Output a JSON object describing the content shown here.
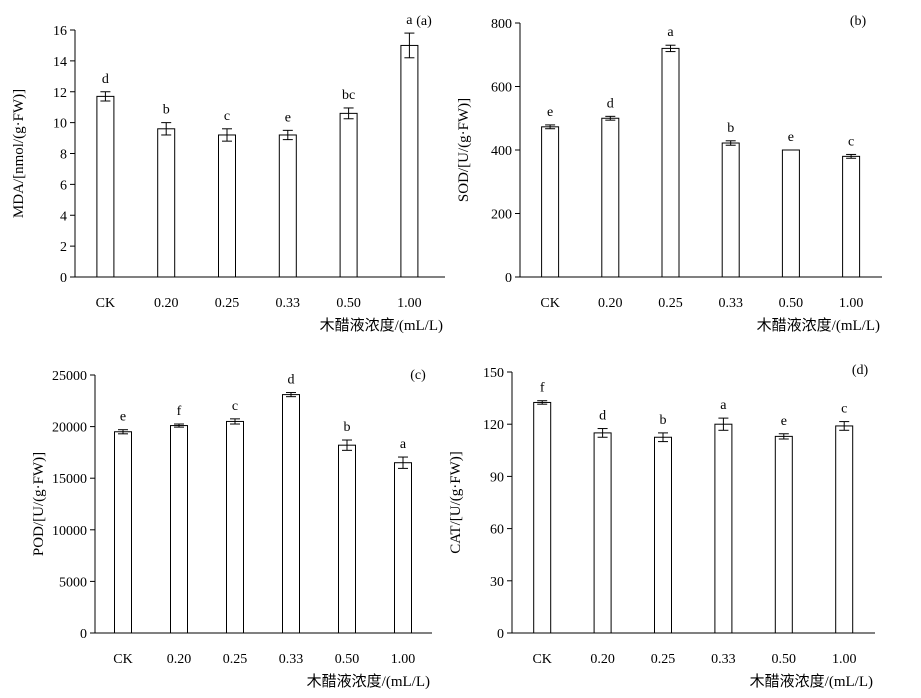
{
  "chart_data": [
    {
      "type": "bar",
      "panel": "(a)",
      "ylabel": "MDA/[nmol/(g·FW)]",
      "xlabel": "木醋液浓度/(mL/L)",
      "categories": [
        "CK",
        "0.20",
        "0.25",
        "0.33",
        "0.50",
        "1.00"
      ],
      "values": [
        11.7,
        9.6,
        9.2,
        9.2,
        10.6,
        15.0
      ],
      "errors": [
        0.3,
        0.4,
        0.4,
        0.3,
        0.35,
        0.8
      ],
      "letters": [
        "d",
        "b",
        "c",
        "e",
        "bc",
        "a"
      ],
      "ylim": [
        0,
        16
      ],
      "yticks": [
        0,
        2,
        4,
        6,
        8,
        10,
        12,
        14,
        16
      ],
      "ytick_labels": [
        "0",
        "2",
        "4",
        "6",
        "8",
        "10",
        "12",
        "14",
        "16"
      ]
    },
    {
      "type": "bar",
      "panel": "(b)",
      "ylabel": "SOD/[U/(g·FW)]",
      "xlabel": "木醋液浓度/(mL/L)",
      "categories": [
        "CK",
        "0.20",
        "0.25",
        "0.33",
        "0.50",
        "1.00"
      ],
      "values": [
        473,
        500,
        720,
        422,
        400,
        380
      ],
      "errors": [
        6,
        6,
        10,
        7,
        0,
        6
      ],
      "letters": [
        "e",
        "d",
        "a",
        "b",
        "e",
        "c"
      ],
      "ylim": [
        0,
        800
      ],
      "yticks": [
        0,
        200,
        400,
        600,
        800
      ],
      "ytick_labels": [
        "0",
        "200",
        "400",
        "600",
        "800"
      ]
    },
    {
      "type": "bar",
      "panel": "(c)",
      "ylabel": "POD/[U/(g·FW)]",
      "xlabel": "木醋液浓度/(mL/L)",
      "categories": [
        "CK",
        "0.20",
        "0.25",
        "0.33",
        "0.50",
        "1.00"
      ],
      "values": [
        19500,
        20100,
        20500,
        23100,
        18200,
        16500
      ],
      "errors": [
        200,
        150,
        250,
        200,
        500,
        550
      ],
      "letters": [
        "e",
        "f",
        "c",
        "d",
        "b",
        "a"
      ],
      "ylim": [
        0,
        25000
      ],
      "yticks": [
        0,
        5000,
        10000,
        15000,
        20000,
        25000
      ],
      "ytick_labels": [
        "0",
        "5000",
        "10000",
        "15000",
        "20000",
        "25000"
      ]
    },
    {
      "type": "bar",
      "panel": "(d)",
      "ylabel": "CAT/[U/(g·FW)]",
      "xlabel": "木醋液浓度/(mL/L)",
      "categories": [
        "CK",
        "0.20",
        "0.25",
        "0.33",
        "0.50",
        "1.00"
      ],
      "values": [
        132.5,
        115,
        112.5,
        120,
        113,
        119
      ],
      "errors": [
        1.0,
        2.5,
        2.5,
        3.5,
        1.5,
        2.5
      ],
      "letters": [
        "f",
        "d",
        "b",
        "a",
        "e",
        "c"
      ],
      "ylim": [
        0,
        150
      ],
      "yticks": [
        0,
        30,
        60,
        90,
        120,
        150
      ],
      "ytick_labels": [
        "0",
        "30",
        "60",
        "90",
        "120",
        "150"
      ]
    }
  ]
}
